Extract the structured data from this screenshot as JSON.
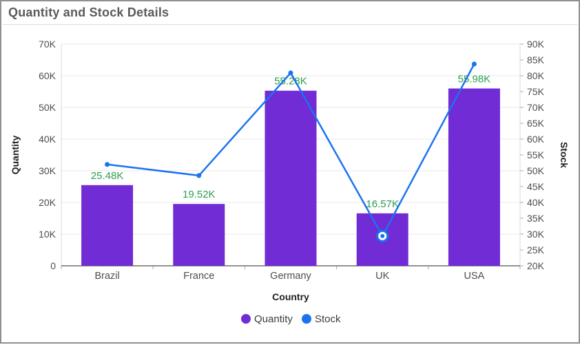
{
  "window": {
    "title": "Quantity and Stock Details"
  },
  "colors": {
    "bar": "#712CD6",
    "line": "#1A73F0",
    "data_label": "#2B9E50",
    "grid": "#E8E8E8",
    "plot_border": "#D9D9D9",
    "axis_line": "#6E6E6E",
    "tick": "#ABABAB",
    "tick_text": "#4D4D4D",
    "axis_title_text": "#1F1F1F",
    "legend_text": "#3C3C3C",
    "title_text": "#5A5A5A",
    "frame_border": "#8F8F8F"
  },
  "chart_data": {
    "type": "combo-bar-line",
    "title": "Quantity and Stock Details",
    "xlabel": "Country",
    "categories": [
      "Brazil",
      "France",
      "Germany",
      "UK",
      "USA"
    ],
    "series": [
      {
        "name": "Quantity",
        "type": "bar",
        "axis": "left",
        "values": [
          25480,
          19520,
          55280,
          16570,
          55980
        ],
        "labels": [
          "25.48K",
          "19.52K",
          "55.28K",
          "16.57K",
          "55.98K"
        ],
        "color": "#712CD6"
      },
      {
        "name": "Stock",
        "type": "line",
        "axis": "right",
        "values": [
          52000,
          48500,
          80900,
          29400,
          83700
        ],
        "values_are_estimates": true,
        "selected_point_index": 3,
        "color": "#1A73F0"
      }
    ],
    "y_left": {
      "label": "Quantity",
      "min": 0,
      "max": 70000,
      "step": 10000,
      "ticks": [
        "0",
        "10K",
        "20K",
        "30K",
        "40K",
        "50K",
        "60K",
        "70K"
      ]
    },
    "y_right": {
      "label": "Stock",
      "min": 20000,
      "max": 90000,
      "step": 5000,
      "ticks": [
        "20K",
        "25K",
        "30K",
        "35K",
        "40K",
        "45K",
        "50K",
        "55K",
        "60K",
        "65K",
        "70K",
        "75K",
        "80K",
        "85K",
        "90K"
      ]
    },
    "legend": [
      {
        "label": "Quantity",
        "color": "#712CD6"
      },
      {
        "label": "Stock",
        "color": "#1A73F0"
      }
    ],
    "legend_position": "bottom",
    "grid": true
  }
}
